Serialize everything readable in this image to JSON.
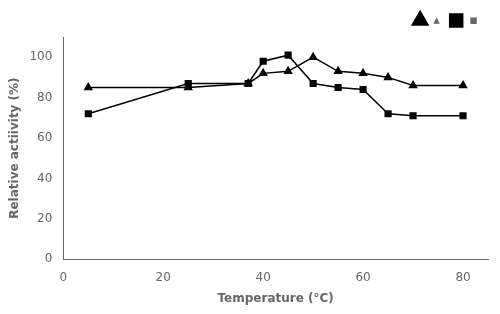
{
  "chart_data": {
    "type": "line",
    "xlabel": "Temperature (°C)",
    "ylabel": "Relative actiivity (%)",
    "x": [
      5,
      25,
      37,
      40,
      45,
      50,
      55,
      60,
      65,
      70,
      80
    ],
    "series": [
      {
        "name": "▴",
        "color": "black",
        "marker": "triangle",
        "values": [
          85,
          85,
          87,
          92,
          93,
          100,
          93,
          92,
          90,
          86,
          86
        ]
      },
      {
        "name": "▪",
        "color": "black",
        "marker": "square",
        "values": [
          72,
          87,
          87,
          98,
          101,
          87,
          85,
          84,
          72,
          71,
          71
        ]
      }
    ],
    "xlim": [
      0,
      85
    ],
    "ylim": [
      0,
      110
    ],
    "xticks": [
      0,
      20,
      40,
      60,
      80
    ],
    "yticks": [
      0,
      20,
      40,
      60,
      80,
      100
    ],
    "grid": false,
    "legend": "upper right"
  }
}
